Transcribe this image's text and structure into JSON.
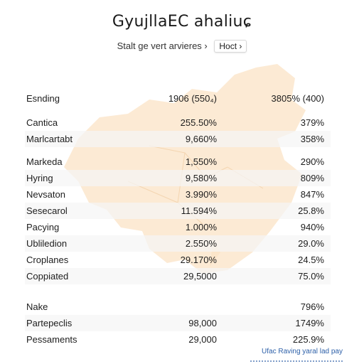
{
  "title": "GyujllaEC ahaliuɕ",
  "controls": {
    "label": "Stalt ge vert arvieres ›",
    "select_value": "Hoct ›"
  },
  "table": {
    "header": [
      "Esnding",
      "1906 (550₄)",
      "3805% (400)"
    ],
    "group1": [
      [
        "Cantica",
        "255.50%",
        "379%"
      ],
      [
        "Marlcartabt",
        "9,660%",
        "358%"
      ]
    ],
    "group2": [
      [
        "Markeda",
        "1,550%",
        "290%"
      ],
      [
        "Hyring",
        "9,580%",
        "809%"
      ],
      [
        "Nevsaton",
        "3.990%",
        "847%"
      ],
      [
        "Sesecarol",
        "11.594%",
        "25.8%"
      ],
      [
        "Pacying",
        "1.000%",
        "940%"
      ],
      [
        "Ubliledion",
        "2.550%",
        "29.0%"
      ],
      [
        "Croplanes",
        "29.170%",
        "24.5%"
      ],
      [
        "Coppiated",
        "29,5000",
        "75.0%"
      ]
    ],
    "group3": [
      [
        "Nake",
        "",
        "796%"
      ],
      [
        "Partepeclis",
        "98,000",
        "1749%"
      ],
      [
        "Pessaments",
        "29,000",
        "225.9%"
      ]
    ]
  },
  "footer": {
    "text": "Ufac Raving yaral lad pay"
  },
  "colors": {
    "map_fill": "#fbe3c6",
    "row_alt": "#f5f5f5",
    "footer_text": "#2c5fa8"
  }
}
